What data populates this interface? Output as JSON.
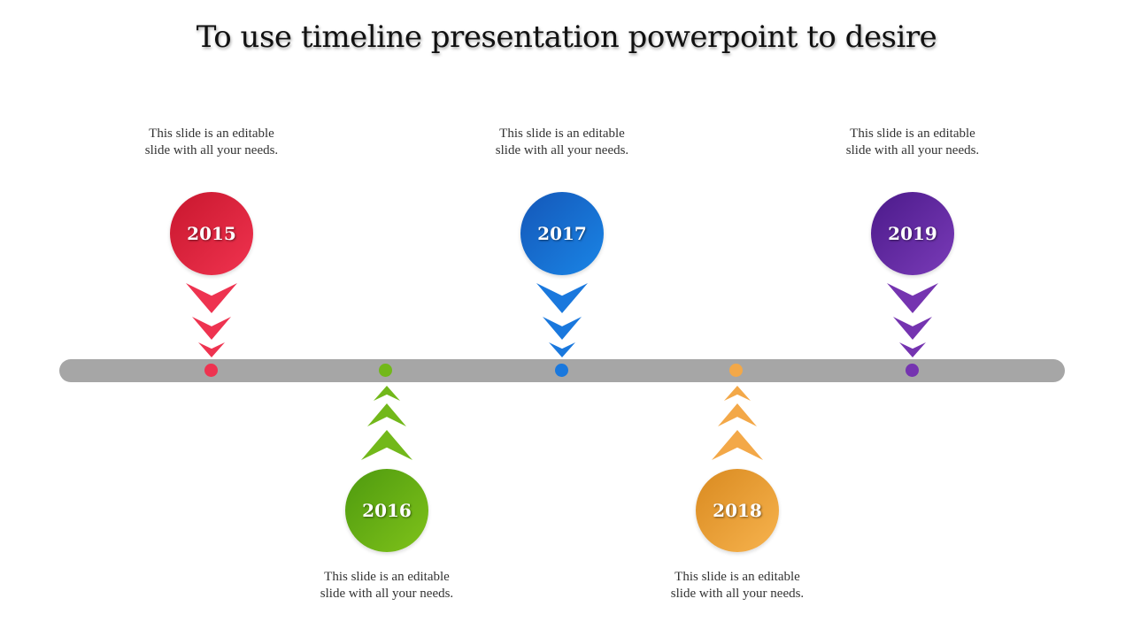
{
  "title": "To use timeline presentation powerpoint to desire",
  "milestones": [
    {
      "year": "2015",
      "text": "This slide is an editable slide with all your needs.",
      "position": "top",
      "color_start": "#c8172e",
      "color_end": "#f0334f",
      "accent": "#ee3350"
    },
    {
      "year": "2016",
      "text": "This slide is an editable slide with all your needs.",
      "position": "bottom",
      "color_start": "#4e9a0f",
      "color_end": "#7fc21a",
      "accent": "#72b81a"
    },
    {
      "year": "2017",
      "text": "This slide is an editable slide with all your needs.",
      "position": "top",
      "color_start": "#1457b8",
      "color_end": "#1a85e6",
      "accent": "#1a78dd"
    },
    {
      "year": "2018",
      "text": "This slide is an editable slide with all your needs.",
      "position": "bottom",
      "color_start": "#d98a20",
      "color_end": "#f7b34e",
      "accent": "#f3a848"
    },
    {
      "year": "2019",
      "text": "This slide is an editable slide with all your needs.",
      "position": "top",
      "color_start": "#4b1a8a",
      "color_end": "#7a3bb8",
      "accent": "#7534b0"
    }
  ]
}
